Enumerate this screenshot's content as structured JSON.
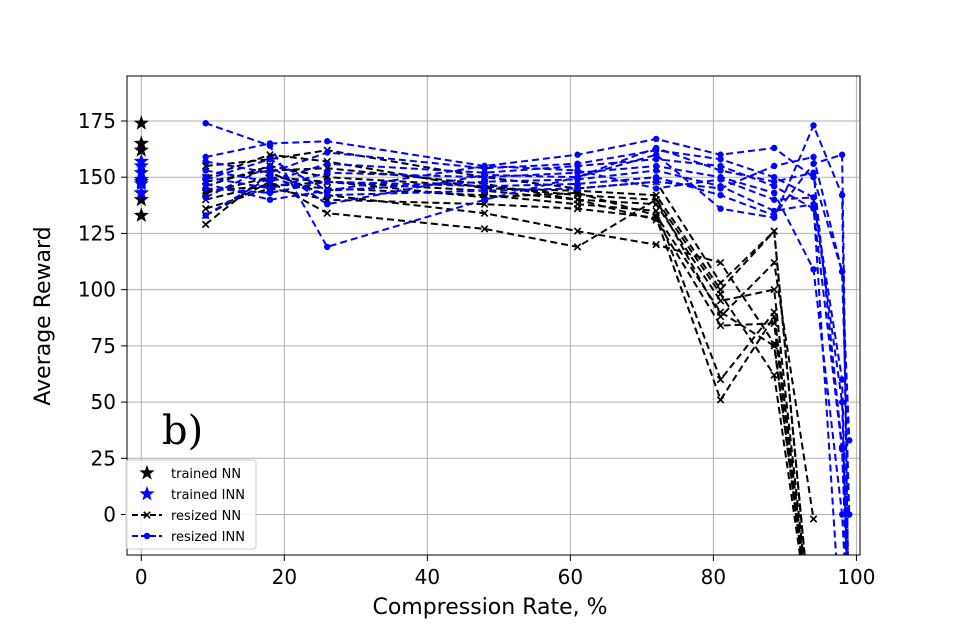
{
  "chart_data": {
    "type": "line",
    "panel_label": "b)",
    "xlabel": "Compression Rate, %",
    "ylabel": "Average Reward",
    "xlim": [
      -2,
      100.5
    ],
    "ylim": [
      -18,
      195
    ],
    "xticks": [
      0,
      20,
      40,
      60,
      80,
      100
    ],
    "yticks": [
      0,
      25,
      50,
      75,
      100,
      125,
      150,
      175
    ],
    "grid": true,
    "legend_position": "lower-left",
    "colors": {
      "nn": "#000000",
      "inn": "#0000ff"
    },
    "legend": [
      {
        "label": "trained NN",
        "marker": "star",
        "color": "#000000",
        "line": false
      },
      {
        "label": "trained INN",
        "marker": "star",
        "color": "#0000ff",
        "line": false
      },
      {
        "label": "resized NN",
        "marker": "x",
        "color": "#000000",
        "line": true
      },
      {
        "label": "resized INN",
        "marker": "dot",
        "color": "#0000ff",
        "line": true
      }
    ],
    "trained_nn": [
      174,
      165,
      162,
      148,
      143,
      140,
      133
    ],
    "trained_inn": [
      157,
      155,
      152,
      149,
      147,
      143
    ],
    "resized_nn": {
      "x": [
        9,
        18,
        26,
        48,
        61,
        72,
        81,
        88.5,
        94
      ],
      "series": [
        [
          150,
          160,
          157,
          145,
          144,
          142,
          100,
          126,
          -60
        ],
        [
          146,
          155,
          150,
          146,
          142,
          140,
          88,
          112,
          -2
        ],
        [
          143,
          150,
          148,
          144,
          140,
          138,
          95,
          100,
          -60
        ],
        [
          140,
          147,
          145,
          142,
          138,
          135,
          60,
          90,
          -60
        ],
        [
          136,
          145,
          140,
          138,
          136,
          132,
          51,
          88,
          -60
        ],
        [
          133,
          148,
          134,
          127,
          119,
          140,
          98,
          62,
          -60
        ],
        [
          129,
          152,
          142,
          134,
          126,
          120,
          112,
          76,
          -60
        ],
        [
          155,
          158,
          162,
          150,
          145,
          148,
          103,
          126,
          -60
        ],
        [
          148,
          153,
          154,
          147,
          140,
          131,
          84,
          85,
          -60
        ],
        [
          144,
          146,
          148,
          141,
          143,
          133,
          90,
          75,
          -60
        ]
      ]
    },
    "resized_inn": {
      "x": [
        9,
        18,
        26,
        48,
        61,
        72,
        81,
        88.5,
        94,
        98,
        99
      ],
      "series": [
        [
          174,
          164,
          119,
          140,
          150,
          160,
          136,
          132,
          173,
          142,
          -60
        ],
        [
          159,
          165,
          166,
          155,
          160,
          167,
          160,
          163,
          150,
          108,
          33
        ],
        [
          157,
          152,
          161,
          154,
          156,
          162,
          158,
          150,
          141,
          60,
          -60
        ],
        [
          153,
          148,
          156,
          152,
          155,
          158,
          155,
          146,
          136,
          29,
          -60
        ],
        [
          150,
          145,
          152,
          150,
          152,
          155,
          150,
          143,
          109,
          0,
          -60
        ],
        [
          147,
          140,
          144,
          148,
          149,
          153,
          146,
          135,
          138,
          -60,
          -60
        ],
        [
          145,
          143,
          148,
          146,
          147,
          150,
          142,
          133,
          156,
          160,
          -60
        ],
        [
          133,
          150,
          142,
          144,
          145,
          148,
          145,
          155,
          159,
          108,
          0
        ],
        [
          141,
          155,
          138,
          151,
          150,
          163,
          153,
          148,
          152,
          30,
          -60
        ],
        [
          149,
          158,
          144,
          155,
          153,
          145,
          149,
          140,
          141,
          50,
          -60
        ]
      ]
    }
  }
}
